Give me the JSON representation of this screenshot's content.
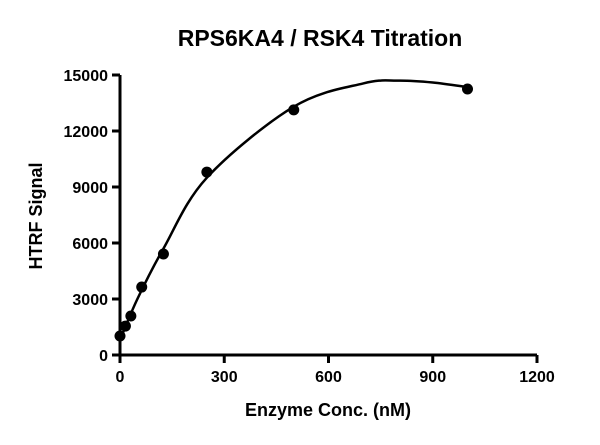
{
  "chart_data": {
    "type": "scatter",
    "title": "RPS6KA4 / RSK4 Titration",
    "xlabel": "Enzyme Conc. (nM)",
    "ylabel": "HTRF Signal",
    "xlim": [
      0,
      1200
    ],
    "ylim": [
      0,
      15000
    ],
    "xticks": [
      0,
      300,
      600,
      900,
      1200
    ],
    "yticks": [
      0,
      3000,
      6000,
      9000,
      12000,
      15000
    ],
    "grid": false,
    "points": {
      "x": [
        0,
        15.6,
        31.25,
        62.5,
        125,
        250,
        500,
        1000
      ],
      "y": [
        1020,
        1550,
        2090,
        3640,
        5410,
        9800,
        13130,
        14250
      ]
    },
    "fit_curve": {
      "x": [
        0,
        50,
        125,
        250,
        500,
        700,
        800,
        900,
        1000
      ],
      "y": [
        800,
        3000,
        5700,
        9500,
        13300,
        14550,
        14700,
        14600,
        14350
      ]
    },
    "colors": {
      "marks": "#000000"
    }
  }
}
